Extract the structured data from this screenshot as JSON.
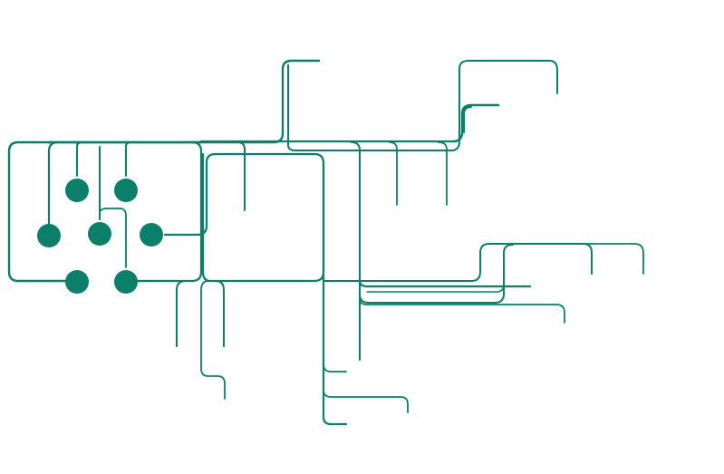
{
  "diagram": {
    "kind": "network-flow",
    "stroke_color": "#0a7f69",
    "background": "#ffffff",
    "nodes": [
      {
        "id": "n1",
        "row": 1,
        "col": 1
      },
      {
        "id": "n2",
        "row": 1,
        "col": 2
      },
      {
        "id": "n3",
        "row": 2,
        "col": 1
      },
      {
        "id": "n4",
        "row": 2,
        "col": 2
      },
      {
        "id": "n5",
        "row": 2,
        "col": 3
      },
      {
        "id": "n6",
        "row": 3,
        "col": 1
      },
      {
        "id": "n7",
        "row": 3,
        "col": 2
      }
    ]
  }
}
